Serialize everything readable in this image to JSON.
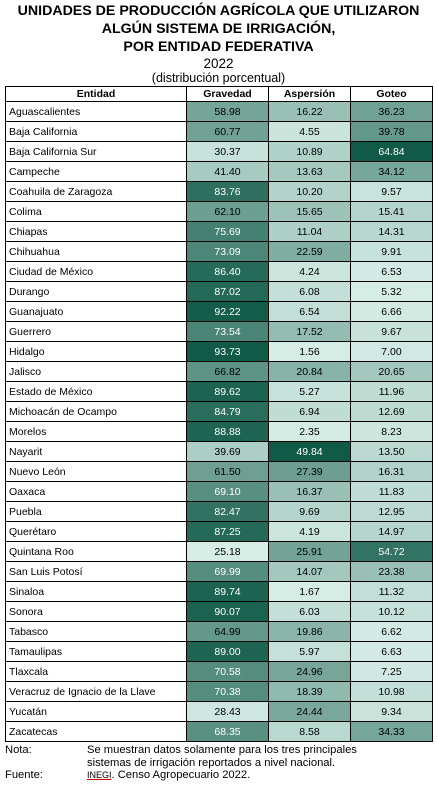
{
  "title": {
    "line1": "UNIDADES DE PRODUCCIÓN AGRÍCOLA QUE UTILIZARON",
    "line2": "ALGÚN SISTEMA DE IRRIGACIÓN,",
    "line3": "POR ENTIDAD FEDERATIVA",
    "year": "2022",
    "subtitle": "(distribución porcentual)"
  },
  "table": {
    "headers": [
      "Entidad",
      "Gravedad",
      "Aspersión",
      "Goteo"
    ],
    "rows": [
      [
        "Aguascalientes",
        "58.98",
        "16.22",
        "36.23"
      ],
      [
        "Baja California",
        "60.77",
        "4.55",
        "39.78"
      ],
      [
        "Baja California Sur",
        "30.37",
        "10.89",
        "64.84"
      ],
      [
        "Campeche",
        "41.40",
        "13.63",
        "34.12"
      ],
      [
        "Coahuila de Zaragoza",
        "83.76",
        "10.20",
        "9.57"
      ],
      [
        "Colima",
        "62.10",
        "15.65",
        "15.41"
      ],
      [
        "Chiapas",
        "75.69",
        "11.04",
        "14.31"
      ],
      [
        "Chihuahua",
        "73.09",
        "22.59",
        "9.91"
      ],
      [
        "Ciudad de México",
        "86.40",
        "4.24",
        "6.53"
      ],
      [
        "Durango",
        "87.02",
        "6.08",
        "5.32"
      ],
      [
        "Guanajuato",
        "92.22",
        "6.54",
        "6.66"
      ],
      [
        "Guerrero",
        "73.54",
        "17.52",
        "9.67"
      ],
      [
        "Hidalgo",
        "93.73",
        "1.56",
        "7.00"
      ],
      [
        "Jalisco",
        "66.82",
        "20.84",
        "20.65"
      ],
      [
        "Estado de México",
        "89.62",
        "5.27",
        "11.96"
      ],
      [
        "Michoacán de Ocampo",
        "84.79",
        "6.94",
        "12.69"
      ],
      [
        "Morelos",
        "88.88",
        "2.35",
        "8.23"
      ],
      [
        "Nayarit",
        "39.69",
        "49.84",
        "13.50"
      ],
      [
        "Nuevo León",
        "61.50",
        "27.39",
        "16.31"
      ],
      [
        "Oaxaca",
        "69.10",
        "16.37",
        "11.83"
      ],
      [
        "Puebla",
        "82.47",
        "9.69",
        "12.95"
      ],
      [
        "Querétaro",
        "87.25",
        "4.19",
        "14.97"
      ],
      [
        "Quintana Roo",
        "25.18",
        "25.91",
        "54.72"
      ],
      [
        "San Luis Potosí",
        "69.99",
        "14.07",
        "23.38"
      ],
      [
        "Sinaloa",
        "89.74",
        "1.67",
        "11.32"
      ],
      [
        "Sonora",
        "90.07",
        "6.03",
        "10.12"
      ],
      [
        "Tabasco",
        "64.99",
        "19.86",
        "6.62"
      ],
      [
        "Tamaulipas",
        "89.00",
        "5.97",
        "6.63"
      ],
      [
        "Tlaxcala",
        "70.58",
        "24.96",
        "7.25"
      ],
      [
        "Veracruz de Ignacio de la Llave",
        "70.38",
        "18.39",
        "10.98"
      ],
      [
        "Yucatán",
        "28.43",
        "24.44",
        "9.34"
      ],
      [
        "Zacatecas",
        "68.35",
        "8.58",
        "34.33"
      ]
    ]
  },
  "colors": {
    "scale_low": "#d6ede6",
    "scale_high": "#115a48",
    "text_dark": "#000000",
    "text_light": "#ffffff"
  },
  "notes": {
    "nota_label": "Nota:",
    "nota_line1": "Se muestran datos solamente para los tres principales",
    "nota_line2": "sistemas de irrigación reportados a nivel nacional.",
    "fuente_label": "Fuente:",
    "fuente_org": "INEGI",
    "fuente_text": ". Censo Agropecuario 2022."
  }
}
